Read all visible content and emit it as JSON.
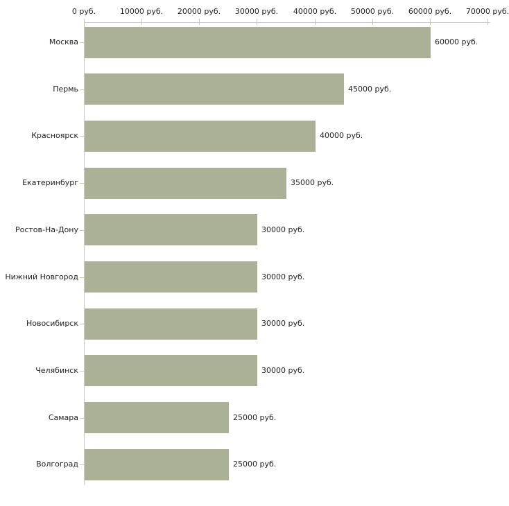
{
  "chart_data": {
    "type": "bar",
    "orientation": "horizontal",
    "categories": [
      "Москва",
      "Пермь",
      "Красноярск",
      "Екатеринбург",
      "Ростов-На-Дону",
      "Нижний Новгород",
      "Новосибирск",
      "Челябинск",
      "Самара",
      "Волгоград"
    ],
    "values": [
      60000,
      45000,
      40000,
      35000,
      30000,
      30000,
      30000,
      30000,
      25000,
      25000
    ],
    "value_labels": [
      "60000 руб.",
      "45000 руб.",
      "40000 руб.",
      "35000 руб.",
      "30000 руб.",
      "30000 руб.",
      "30000 руб.",
      "30000 руб.",
      "25000 руб.",
      "25000 руб."
    ],
    "x_axis": {
      "position": "top",
      "range": [
        0,
        70000
      ],
      "tick_values": [
        0,
        10000,
        20000,
        30000,
        40000,
        50000,
        60000,
        70000
      ],
      "tick_labels": [
        "0 руб.",
        "10000 руб.",
        "20000 руб.",
        "30000 руб.",
        "40000 руб.",
        "50000 руб.",
        "60000 руб.",
        "70000 руб."
      ],
      "grid": false
    },
    "ylabel": "",
    "xlabel": "",
    "legend": "none",
    "colors": {
      "bar": "#abb197",
      "axis_line": "#cccccc",
      "tick_mark": "#cccc99",
      "text": "#222222",
      "background": "#ffffff"
    }
  }
}
